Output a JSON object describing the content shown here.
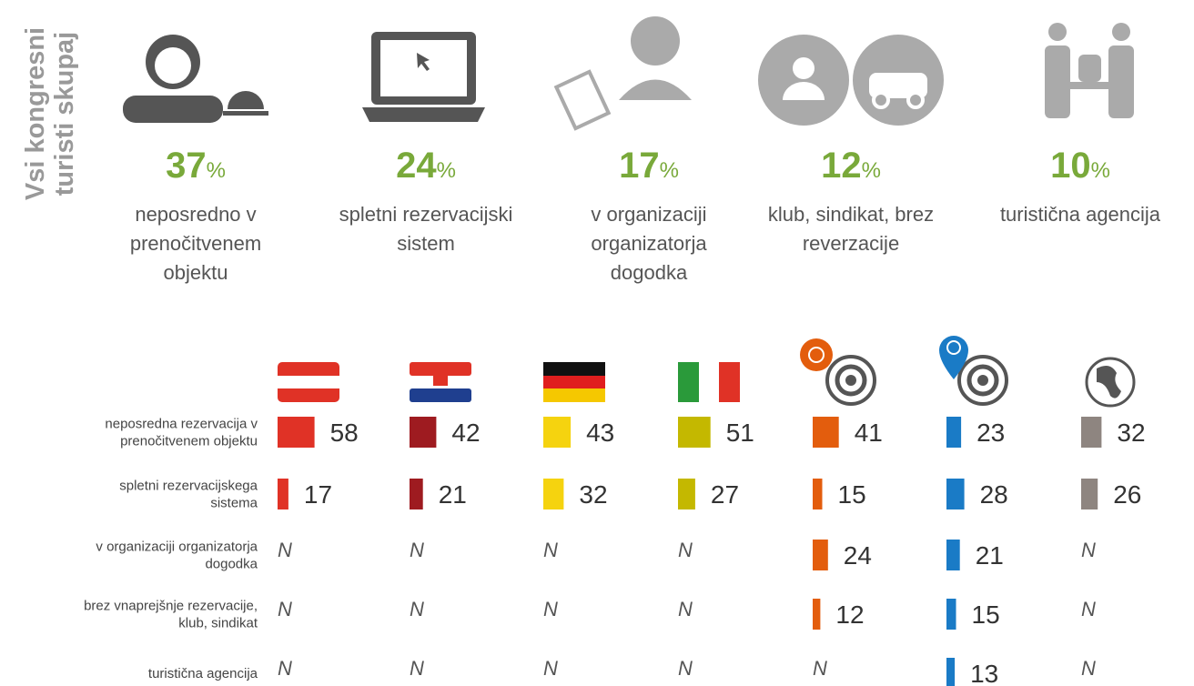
{
  "side_title": [
    "Vsi kongresni",
    "turisti skupaj"
  ],
  "unit": "%",
  "summary": [
    {
      "value": 37,
      "label": [
        "neposredno v",
        "prenočitvenem",
        "objektu"
      ]
    },
    {
      "value": 24,
      "label": [
        "spletni rezervacijski",
        "sistem"
      ]
    },
    {
      "value": 17,
      "label": [
        "v organizaciji",
        "organizatorja",
        "dogodka"
      ]
    },
    {
      "value": 12,
      "label": [
        "klub, sindikat, brez",
        "reverzacije"
      ]
    },
    {
      "value": 10,
      "label": [
        "turistična agencija"
      ]
    }
  ],
  "table": {
    "colors": [
      "#e03226",
      "#9e1b20",
      "#f5d30f",
      "#c4b800",
      "#e35d0d",
      "#1a7bc6",
      "#8e8580"
    ],
    "row_labels": [
      [
        "neposredna rezervacija v",
        "prenočitvenem objektu"
      ],
      [
        "spletni rezervacijskega",
        "sistema"
      ],
      [
        "v organizaciji organizatorja",
        "dogodka"
      ],
      [
        "brez vnaprejšnje rezervacije,",
        "klub, sindikat"
      ],
      [
        "turistična agencija"
      ]
    ],
    "rows": [
      [
        58,
        42,
        43,
        51,
        41,
        23,
        32
      ],
      [
        17,
        21,
        32,
        27,
        15,
        28,
        26
      ],
      [
        "N",
        "N",
        "N",
        "N",
        24,
        21,
        "N"
      ],
      [
        "N",
        "N",
        "N",
        "N",
        12,
        15,
        "N"
      ],
      [
        "N",
        "N",
        "N",
        "N",
        "N",
        13,
        "N"
      ]
    ]
  }
}
